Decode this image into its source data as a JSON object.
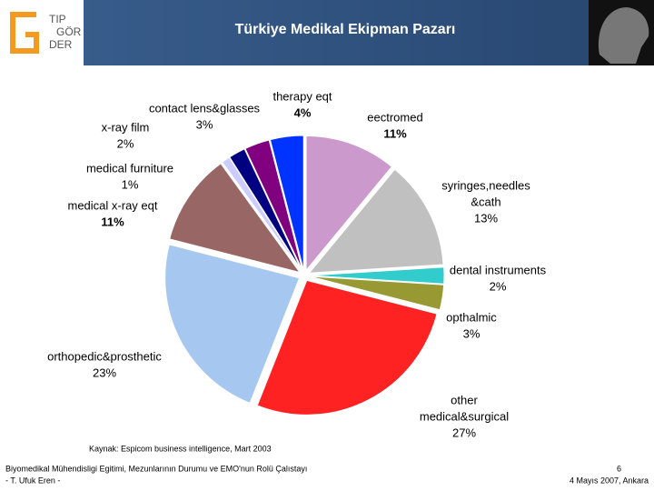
{
  "header": {
    "logo": [
      "TIP",
      "GÖR",
      "DER"
    ]
  },
  "chart_data": {
    "type": "pie",
    "title": "Türkiye Medikal Ekipman Pazarı",
    "categories": [
      "eectromed",
      "syringes,needles\n&cath",
      "dental instruments",
      "opthalmic",
      "other\nmedical&surgical",
      "orthopedic&prosthetic",
      "medical x-ray eqt",
      "medical furniture",
      "x-ray film",
      "contact lens&glasses",
      "therapy eqt"
    ],
    "values": [
      11,
      13,
      2,
      3,
      27,
      23,
      11,
      1,
      2,
      3,
      4
    ],
    "value_labels": [
      "11%",
      "13%",
      "2%",
      "3%",
      "27%",
      "23%",
      "11%",
      "1%",
      "2%",
      "3%",
      "4%"
    ],
    "colors": [
      "#cc99cc",
      "#c0c0c0",
      "#33cccc",
      "#999933",
      "#ff2222",
      "#a6c8f0",
      "#996666",
      "#ccccff",
      "#000080",
      "#800080",
      "#0033ff"
    ]
  },
  "footer": {
    "source": "Kaynak: Espicom business intelligence, Mart 2003",
    "left": [
      "Biyomedikal Mühendisligi Egitimi, Mezunlarının Durumu ve EMO'nun Rolü Çalıstayı",
      "- T. Ufuk Eren  -"
    ],
    "right": [
      "6",
      "4 Mayıs 2007, Ankara"
    ]
  }
}
